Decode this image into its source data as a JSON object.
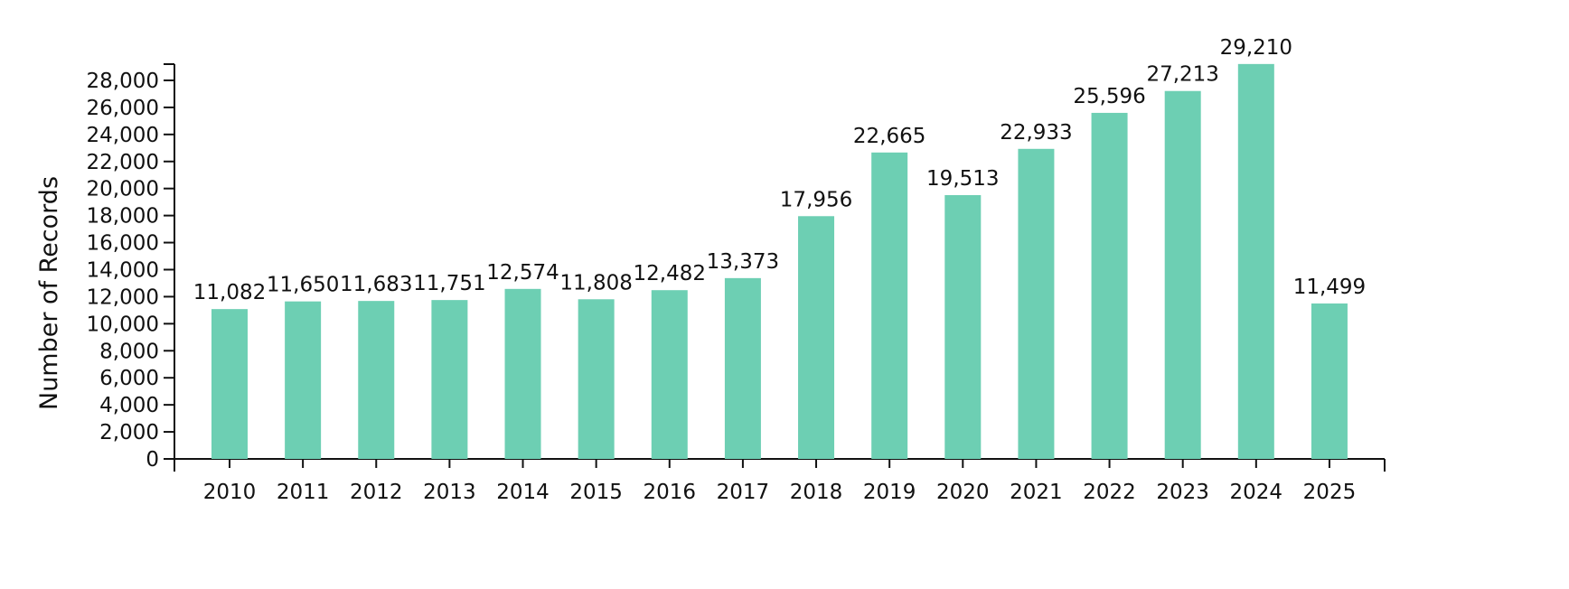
{
  "chart_data": {
    "type": "bar",
    "title": "",
    "xlabel": "",
    "ylabel": "Number of Records",
    "categories": [
      "2010",
      "2011",
      "2012",
      "2013",
      "2014",
      "2015",
      "2016",
      "2017",
      "2018",
      "2019",
      "2020",
      "2021",
      "2022",
      "2023",
      "2024",
      "2025"
    ],
    "values": [
      11082,
      11650,
      11683,
      11751,
      12574,
      11808,
      12482,
      13373,
      17956,
      22665,
      19513,
      22933,
      25596,
      27213,
      29210,
      11499
    ],
    "data_labels": [
      "11,082",
      "11,650",
      "11,683",
      "11,751",
      "12,574",
      "11,808",
      "12,482",
      "13,373",
      "17,956",
      "22,665",
      "19,513",
      "22,933",
      "25,596",
      "27,213",
      "29,210",
      "11,499"
    ],
    "ylim": [
      0,
      29200
    ],
    "yticks": [
      0,
      2000,
      4000,
      6000,
      8000,
      10000,
      12000,
      14000,
      16000,
      18000,
      20000,
      22000,
      24000,
      26000,
      28000
    ],
    "ytick_labels": [
      "0",
      "2,000",
      "4,000",
      "6,000",
      "8,000",
      "10,000",
      "12,000",
      "14,000",
      "16,000",
      "18,000",
      "20,000",
      "22,000",
      "24,000",
      "26,000",
      "28,000"
    ],
    "grid": false,
    "legend": "none",
    "bar_color": "#6dcfb3"
  }
}
